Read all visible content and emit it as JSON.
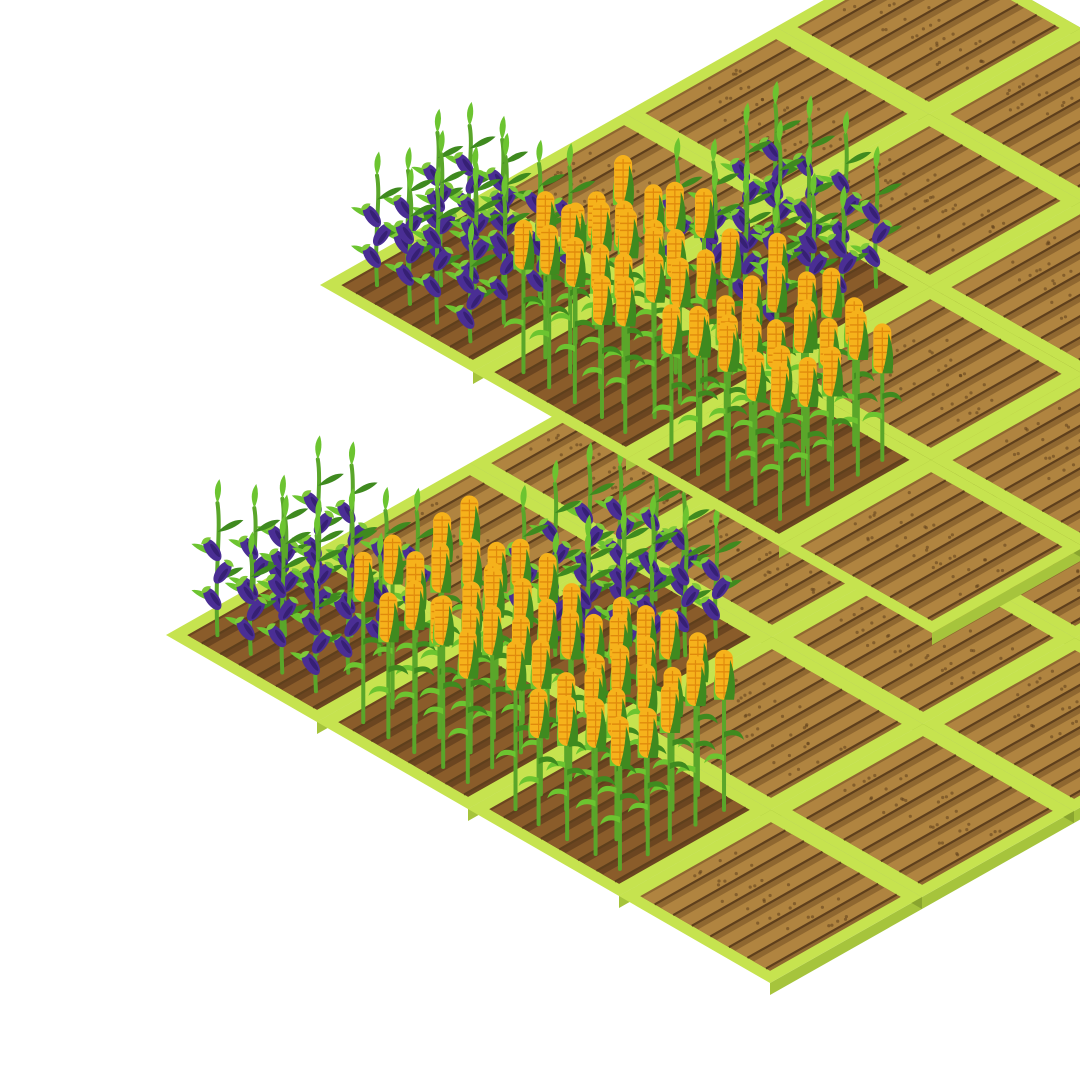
{
  "scene": {
    "view": "isometric",
    "background": "#ffffff"
  },
  "palette": {
    "border_top": "#c6e34f",
    "border_left": "#a6c43c",
    "border_right": "#8aa52f",
    "soil_light": "#b08440",
    "soil_mid": "#8f6730",
    "soil_dark": "#5e3f1c",
    "soil_planted": "#6b4520",
    "stalk": "#5aa62a",
    "leaf": "#6cc430",
    "leaf_dark": "#3f8a1f",
    "corn": "#f6b21b",
    "corn_dark": "#e08a0c",
    "eggplant": "#4a2e94",
    "eggplant_dark": "#2e1b66",
    "calyx": "#7fc83a"
  },
  "layers": [
    {
      "name": "upper",
      "plots": [
        {
          "u": 0,
          "v": 0,
          "crop": "eggplant"
        },
        {
          "u": 0,
          "v": 1,
          "crop": "corn"
        },
        {
          "u": 0,
          "v": 2,
          "crop": "corn"
        },
        {
          "u": 0,
          "v": 3,
          "crop": "empty"
        },
        {
          "u": 1,
          "v": 0,
          "crop": "empty"
        },
        {
          "u": 1,
          "v": 1,
          "crop": "eggplant"
        },
        {
          "u": 1,
          "v": 2,
          "crop": "empty"
        },
        {
          "u": 1,
          "v": 3,
          "crop": "empty"
        },
        {
          "u": 2,
          "v": 0,
          "crop": "empty"
        },
        {
          "u": 2,
          "v": 1,
          "crop": "empty"
        },
        {
          "u": 2,
          "v": 2,
          "crop": "empty"
        },
        {
          "u": 2,
          "v": 3,
          "crop": "empty"
        },
        {
          "u": 3,
          "v": 0,
          "crop": "empty"
        },
        {
          "u": 3,
          "v": 1,
          "crop": "empty"
        },
        {
          "u": 3,
          "v": 2,
          "crop": "empty"
        },
        {
          "u": 3,
          "v": 3,
          "crop": "empty"
        }
      ]
    },
    {
      "name": "lower",
      "plots": [
        {
          "u": 0,
          "v": 0,
          "crop": "eggplant"
        },
        {
          "u": 0,
          "v": 1,
          "crop": "corn"
        },
        {
          "u": 0,
          "v": 2,
          "crop": "corn"
        },
        {
          "u": 0,
          "v": 3,
          "crop": "empty"
        },
        {
          "u": 1,
          "v": 0,
          "crop": "empty"
        },
        {
          "u": 1,
          "v": 1,
          "crop": "eggplant"
        },
        {
          "u": 1,
          "v": 2,
          "crop": "empty"
        },
        {
          "u": 1,
          "v": 3,
          "crop": "empty"
        },
        {
          "u": 2,
          "v": 0,
          "crop": "empty"
        },
        {
          "u": 2,
          "v": 1,
          "crop": "empty"
        },
        {
          "u": 2,
          "v": 2,
          "crop": "empty"
        },
        {
          "u": 2,
          "v": 3,
          "crop": "empty"
        },
        {
          "u": 3,
          "v": 0,
          "crop": "empty"
        },
        {
          "u": 3,
          "v": 1,
          "crop": "empty"
        },
        {
          "u": 3,
          "v": 2,
          "crop": "empty"
        },
        {
          "u": 3,
          "v": 3,
          "crop": "empty"
        },
        {
          "u": 4,
          "v": 0,
          "crop": "empty"
        },
        {
          "u": 4,
          "v": 1,
          "crop": "empty"
        },
        {
          "u": 4,
          "v": 2,
          "crop": "empty"
        },
        {
          "u": 4,
          "v": 3,
          "crop": "empty"
        }
      ]
    }
  ]
}
